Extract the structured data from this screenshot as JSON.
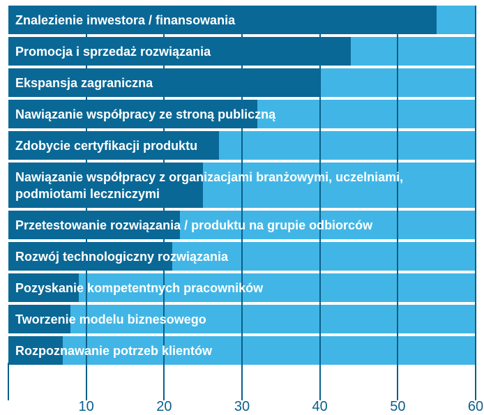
{
  "chart_data": {
    "type": "barh",
    "categories": [
      "Znalezienie inwestora / finansowania",
      "Promocja i sprzedaż rozwiązania",
      "Ekspansja zagraniczna",
      "Nawiązanie współpracy ze stroną publiczną",
      "Zdobycie certyfikacji produktu",
      "Nawiązanie współpracy z organizacjami branżowymi, uczelniami, podmiotami leczniczymi",
      "Przetestowanie rozwiązania / produktu na grupie odbiorców",
      "Rozwój technologiczny rozwiązania",
      "Pozyskanie kompetentnych pracowników",
      "Tworzenie modelu biznesowego",
      "Rozpoznawanie potrzeb klientów"
    ],
    "values": [
      55,
      44,
      40,
      32,
      27,
      25,
      22,
      21,
      9,
      8,
      7
    ],
    "color": "#0a6896",
    "background_color": "#41b6e6",
    "xlim": [
      0,
      60
    ],
    "xticks": [
      10,
      20,
      30,
      40,
      50,
      60
    ],
    "grid": true
  }
}
